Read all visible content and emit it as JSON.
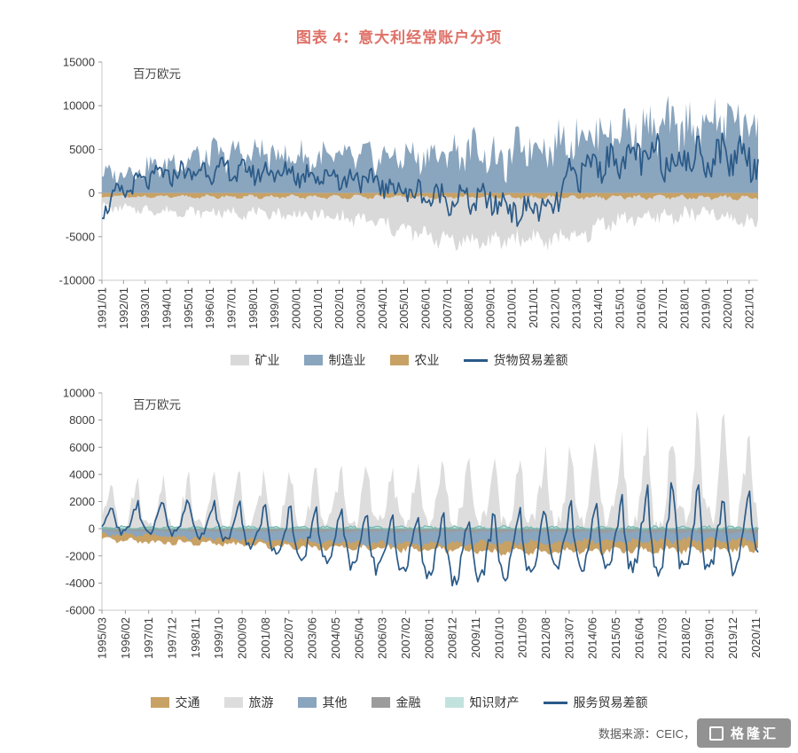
{
  "title": "图表 4：意大利经常账户分项",
  "accent_color": "#DF7168",
  "footer": {
    "source": "数据来源：CEIC，",
    "watermark": "格隆汇"
  },
  "chart_data": [
    {
      "id": "goods",
      "type": "area",
      "unit": "百万欧元",
      "months": 366,
      "ylim": [
        -10000,
        15000
      ],
      "yticks": [
        15000,
        10000,
        5000,
        0,
        -5000,
        -10000
      ],
      "xtick_step": 12,
      "xtick_labels": [
        "1991/01",
        "1992/01",
        "1993/01",
        "1994/01",
        "1995/01",
        "1996/01",
        "1997/01",
        "1998/01",
        "1999/01",
        "2000/01",
        "2001/01",
        "2002/01",
        "2003/01",
        "2004/01",
        "2005/01",
        "2006/01",
        "2007/01",
        "2008/01",
        "2009/01",
        "2010/01",
        "2011/01",
        "2012/01",
        "2013/01",
        "2014/01",
        "2015/01",
        "2016/01",
        "2017/01",
        "2018/01",
        "2019/01",
        "2020/01",
        "2021/01"
      ],
      "legend": [
        "mining",
        "manufacturing",
        "agriculture",
        "goods-balance"
      ],
      "series": [
        {
          "slug": "mining",
          "name": "矿业",
          "color": "#D9D9D9",
          "kind": "area",
          "clamp": "neg",
          "seed": 7,
          "wseason": 0.35,
          "wnoise": 0.65,
          "phase": 2,
          "base": [
            [
              0,
              -1600
            ],
            [
              36,
              -2100
            ],
            [
              84,
              -2300
            ],
            [
              120,
              -2600
            ],
            [
              150,
              -3200
            ],
            [
              168,
              -4300
            ],
            [
              192,
              -5300
            ],
            [
              216,
              -5600
            ],
            [
              240,
              -5000
            ],
            [
              252,
              -5800
            ],
            [
              258,
              -4200
            ],
            [
              264,
              -5600
            ],
            [
              276,
              -3600
            ],
            [
              288,
              -3000
            ],
            [
              312,
              -2700
            ],
            [
              336,
              -2300
            ],
            [
              352,
              -3100
            ],
            [
              365,
              -3300
            ]
          ],
          "amp": [
            [
              0,
              700
            ],
            [
              120,
              1000
            ],
            [
              200,
              1600
            ],
            [
              260,
              1400
            ],
            [
              365,
              1100
            ]
          ]
        },
        {
          "slug": "manufacturing",
          "name": "制造业",
          "color": "#8AA5BE",
          "kind": "area",
          "clamp": "pos",
          "seed": 3,
          "wseason": 0.35,
          "wnoise": 0.65,
          "phase": 0,
          "base": [
            [
              0,
              2000
            ],
            [
              24,
              2800
            ],
            [
              60,
              4300
            ],
            [
              90,
              4600
            ],
            [
              120,
              3900
            ],
            [
              156,
              4100
            ],
            [
              192,
              4400
            ],
            [
              210,
              5200
            ],
            [
              222,
              3200
            ],
            [
              234,
              5600
            ],
            [
              252,
              5400
            ],
            [
              264,
              6600
            ],
            [
              288,
              7200
            ],
            [
              312,
              7400
            ],
            [
              336,
              7800
            ],
            [
              352,
              8400
            ],
            [
              365,
              7600
            ]
          ],
          "amp": [
            [
              0,
              1300
            ],
            [
              60,
              2300
            ],
            [
              150,
              2300
            ],
            [
              250,
              3100
            ],
            [
              300,
              3600
            ],
            [
              365,
              4400
            ]
          ]
        },
        {
          "slug": "agriculture",
          "name": "农业",
          "color": "#C8A164",
          "kind": "area",
          "seed": 11,
          "wseason": 0.5,
          "wnoise": 0.5,
          "phase": 5,
          "base": [
            [
              0,
              -420
            ],
            [
              365,
              -520
            ]
          ],
          "amp": [
            [
              0,
              260
            ],
            [
              365,
              380
            ]
          ]
        },
        {
          "slug": "goods-balance",
          "name": "货物贸易差额",
          "color": "#2A5A88",
          "kind": "line",
          "seed": 5,
          "wseason": 0.35,
          "wnoise": 0.65,
          "phase": 7,
          "base": [
            [
              0,
              -2000
            ],
            [
              8,
              -300
            ],
            [
              18,
              900
            ],
            [
              30,
              2000
            ],
            [
              60,
              2600
            ],
            [
              90,
              2400
            ],
            [
              120,
              2100
            ],
            [
              144,
              1600
            ],
            [
              162,
              600
            ],
            [
              180,
              -300
            ],
            [
              198,
              -700
            ],
            [
              216,
              -900
            ],
            [
              228,
              -1600
            ],
            [
              234,
              -2600
            ],
            [
              242,
              -1000
            ],
            [
              248,
              -2900
            ],
            [
              254,
              -300
            ],
            [
              260,
              1600
            ],
            [
              268,
              2800
            ],
            [
              280,
              3700
            ],
            [
              300,
              4100
            ],
            [
              324,
              4000
            ],
            [
              348,
              4300
            ],
            [
              358,
              4700
            ],
            [
              365,
              3400
            ]
          ],
          "amp": [
            [
              0,
              1400
            ],
            [
              60,
              1700
            ],
            [
              150,
              2000
            ],
            [
              230,
              2200
            ],
            [
              262,
              2400
            ],
            [
              300,
              2900
            ],
            [
              365,
              3100
            ]
          ]
        }
      ]
    },
    {
      "id": "services",
      "type": "area",
      "unit": "百万欧元",
      "months": 310,
      "start_month": 3,
      "ylim": [
        -6000,
        10000
      ],
      "yticks": [
        10000,
        8000,
        6000,
        4000,
        2000,
        0,
        -2000,
        -4000,
        -6000
      ],
      "xtick_step": 11,
      "xtick_labels": [
        "1995/03",
        "1996/02",
        "1997/01",
        "1997/12",
        "1998/11",
        "1999/10",
        "2000/09",
        "2001/08",
        "2002/07",
        "2003/06",
        "2004/05",
        "2005/04",
        "2006/03",
        "2007/02",
        "2008/01",
        "2008/12",
        "2009/11",
        "2010/10",
        "2011/09",
        "2012/08",
        "2013/07",
        "2014/06",
        "2015/05",
        "2016/04",
        "2017/03",
        "2018/02",
        "2019/01",
        "2019/12",
        "2020/11"
      ],
      "legend": [
        "transport",
        "tourism",
        "other",
        "finance",
        "intellectual-property",
        "services-balance"
      ],
      "series": [
        {
          "slug": "tourism",
          "name": "旅游",
          "color": "#DDDDDD",
          "kind": "area",
          "mul": true,
          "clamp": "pos",
          "seed": 13,
          "wnoise": 0.18,
          "season12": [
            0.05,
            0.08,
            0.16,
            0.3,
            0.5,
            0.72,
            0.95,
            1.0,
            0.66,
            0.36,
            0.12,
            0.06
          ],
          "base": [
            [
              0,
              3400
            ],
            [
              60,
              3800
            ],
            [
              120,
              4300
            ],
            [
              180,
              4800
            ],
            [
              230,
              5600
            ],
            [
              262,
              6800
            ],
            [
              285,
              8000
            ],
            [
              298,
              6800
            ],
            [
              309,
              6600
            ]
          ]
        },
        {
          "slug": "transport",
          "name": "交通",
          "color": "#C8A164",
          "kind": "area",
          "clamp": "neg",
          "seed": 17,
          "wseason": 0.4,
          "wnoise": 0.6,
          "phase": 1,
          "base": [
            [
              0,
              -850
            ],
            [
              100,
              -1350
            ],
            [
              200,
              -1700
            ],
            [
              260,
              -1600
            ],
            [
              309,
              -1450
            ]
          ],
          "amp": [
            [
              0,
              260
            ],
            [
              309,
              420
            ]
          ]
        },
        {
          "slug": "other",
          "name": "其他",
          "color": "#8AA5BE",
          "kind": "area",
          "clamp": "neg",
          "seed": 19,
          "wseason": 0.4,
          "wnoise": 0.6,
          "phase": 4,
          "base": [
            [
              0,
              -380
            ],
            [
              60,
              -750
            ],
            [
              150,
              -1150
            ],
            [
              240,
              -900
            ],
            [
              309,
              -800
            ]
          ],
          "amp": [
            [
              0,
              220
            ],
            [
              309,
              360
            ]
          ]
        },
        {
          "slug": "finance",
          "name": "金融",
          "color": "#9C9C9C",
          "kind": "area",
          "seed": 23,
          "wseason": 0.5,
          "wnoise": 0.5,
          "phase": 2,
          "base": [
            [
              0,
              -160
            ],
            [
              309,
              -260
            ]
          ],
          "amp": [
            [
              0,
              90
            ],
            [
              309,
              140
            ]
          ]
        },
        {
          "slug": "intellectual-property",
          "name": "知识财产",
          "color": "#C2E2DE",
          "kind": "area",
          "stroke": "#79B8B0",
          "seed": 29,
          "wseason": 0.5,
          "wnoise": 0.5,
          "phase": 6,
          "base": [
            [
              0,
              90
            ],
            [
              309,
              40
            ]
          ],
          "amp": [
            [
              0,
              130
            ],
            [
              309,
              210
            ]
          ]
        },
        {
          "slug": "services-balance",
          "name": "服务贸易差额",
          "color": "#2A5A88",
          "kind": "line",
          "seed": 31,
          "seasonSigned": true,
          "wseason": 0.92,
          "wnoise": 0.2,
          "season12": [
            0.1,
            0.14,
            0.22,
            0.38,
            0.55,
            0.72,
            0.93,
            1.0,
            0.62,
            0.38,
            0.18,
            0.1
          ],
          "base": [
            [
              0,
              550
            ],
            [
              36,
              750
            ],
            [
              60,
              350
            ],
            [
              84,
              -350
            ],
            [
              108,
              -750
            ],
            [
              132,
              -1150
            ],
            [
              160,
              -1500
            ],
            [
              172,
              -1750
            ],
            [
              186,
              -1450
            ],
            [
              204,
              -1000
            ],
            [
              228,
              -800
            ],
            [
              252,
              -450
            ],
            [
              276,
              -250
            ],
            [
              295,
              -850
            ],
            [
              305,
              -200
            ],
            [
              309,
              300
            ]
          ],
          "amp": [
            [
              0,
              1200
            ],
            [
              60,
              1600
            ],
            [
              96,
              2200
            ],
            [
              132,
              2500
            ],
            [
              168,
              2900
            ],
            [
              204,
              2600
            ],
            [
              240,
              2900
            ],
            [
              272,
              3900
            ],
            [
              292,
              3300
            ],
            [
              309,
              2600
            ]
          ]
        }
      ]
    }
  ]
}
